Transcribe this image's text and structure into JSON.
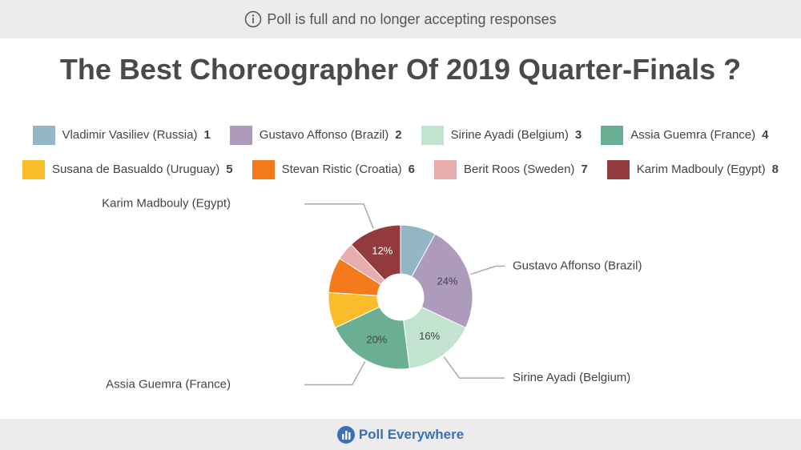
{
  "banner": "Poll is full and no longer accepting responses",
  "footer": "Poll Everywhere",
  "chart_data": {
    "type": "pie",
    "donut": true,
    "title": "The Best Choreographer Of 2019 Quarter-Finals ?",
    "categories": [
      "Vladimir Vasiliev (Russia)",
      "Gustavo Affonso (Brazil)",
      "Sirine Ayadi (Belgium)",
      "Assia Guemra (France)",
      "Susana de Basualdo (Uruguay)",
      "Stevan Ristic (Croatia)",
      "Berit Roos (Sweden)",
      "Karim Madbouly (Egypt)"
    ],
    "legend_numbers": [
      1,
      2,
      3,
      4,
      5,
      6,
      7,
      8
    ],
    "values": [
      8,
      24,
      16,
      20,
      8,
      8,
      4,
      12
    ],
    "value_labels": [
      null,
      "24%",
      "16%",
      "20%",
      null,
      null,
      null,
      "12%"
    ],
    "colors": [
      "#94b7c6",
      "#ae9bbc",
      "#c3e3d1",
      "#6aae93",
      "#fbbc2c",
      "#f47a1b",
      "#e8adad",
      "#923a3c"
    ]
  }
}
